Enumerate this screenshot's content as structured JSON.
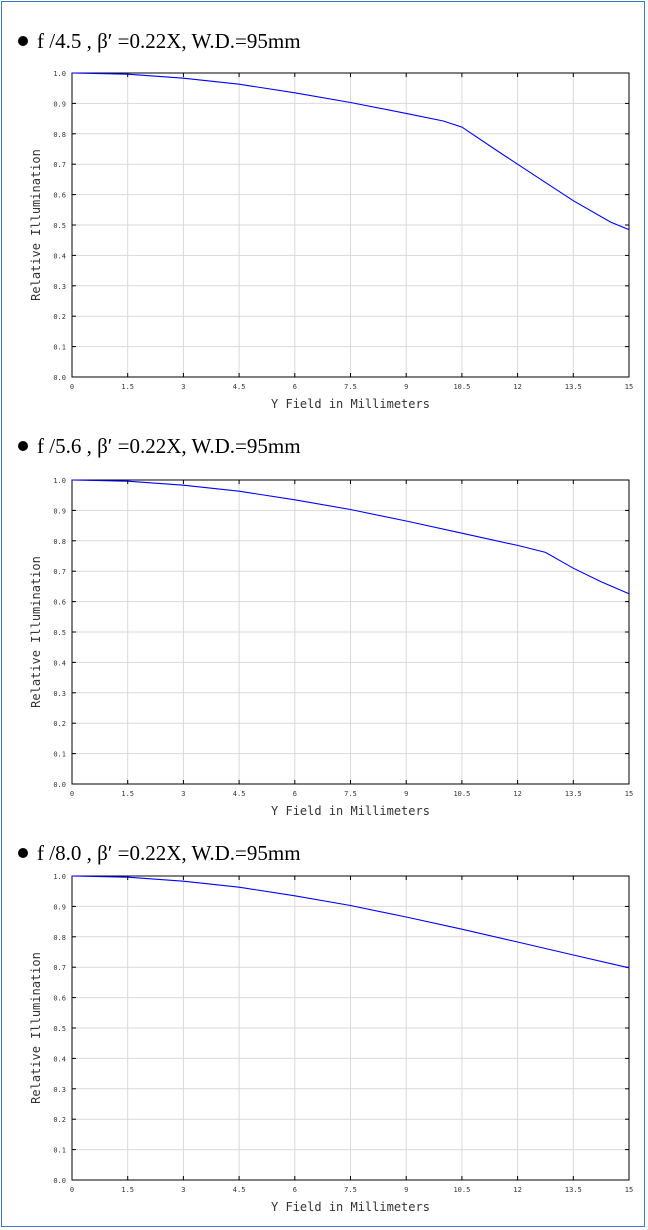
{
  "chart_data": [
    {
      "type": "line",
      "title": "f /4.5 , β′ =0.22X,  W.D.=95mm",
      "xlabel": "Y Field in Millimeters",
      "ylabel": "Relative Illumination",
      "xlim": [
        0,
        15
      ],
      "ylim": [
        0,
        1.0
      ],
      "xticks": [
        "0",
        "1.5",
        "3",
        "4.5",
        "6",
        "7.5",
        "9",
        "10.5",
        "12",
        "13.5",
        "15"
      ],
      "yticks": [
        "0.0",
        "0.1",
        "0.2",
        "0.3",
        "0.4",
        "0.5",
        "0.6",
        "0.7",
        "0.8",
        "0.9",
        "1.0"
      ],
      "grid": true,
      "line_color": "#0000ff",
      "series": [
        {
          "x": [
            0,
            1.5,
            3,
            4.5,
            6,
            7.5,
            9,
            10.0,
            10.5,
            11.5,
            12.5,
            13.5,
            14.5,
            15
          ],
          "y": [
            1.0,
            0.996,
            0.983,
            0.963,
            0.935,
            0.903,
            0.867,
            0.842,
            0.822,
            0.74,
            0.66,
            0.58,
            0.51,
            0.485
          ]
        }
      ]
    },
    {
      "type": "line",
      "title": "f /5.6 , β′ =0.22X,  W.D.=95mm",
      "xlabel": "Y Field in Millimeters",
      "ylabel": "Relative Illumination",
      "xlim": [
        0,
        15
      ],
      "ylim": [
        0,
        1.0
      ],
      "xticks": [
        "0",
        "1.5",
        "3",
        "4.5",
        "6",
        "7.5",
        "9",
        "10.5",
        "12",
        "13.5",
        "15"
      ],
      "yticks": [
        "0.0",
        "0.1",
        "0.2",
        "0.3",
        "0.4",
        "0.5",
        "0.6",
        "0.7",
        "0.8",
        "0.9",
        "1.0"
      ],
      "grid": true,
      "line_color": "#0000ff",
      "series": [
        {
          "x": [
            0,
            1.5,
            3,
            4.5,
            6,
            7.5,
            9,
            10.5,
            12,
            12.75,
            13.5,
            14.25,
            15
          ],
          "y": [
            1.0,
            0.996,
            0.983,
            0.963,
            0.935,
            0.903,
            0.865,
            0.825,
            0.785,
            0.762,
            0.71,
            0.665,
            0.626
          ]
        }
      ]
    },
    {
      "type": "line",
      "title": "f /8.0 , β′ =0.22X,  W.D.=95mm",
      "xlabel": "Y Field in Millimeters",
      "ylabel": "Relative Illumination",
      "xlim": [
        0,
        15
      ],
      "ylim": [
        0,
        1.0
      ],
      "xticks": [
        "0",
        "1.5",
        "3",
        "4.5",
        "6",
        "7.5",
        "9",
        "10.5",
        "12",
        "13.5",
        "15"
      ],
      "yticks": [
        "0.0",
        "0.1",
        "0.2",
        "0.3",
        "0.4",
        "0.5",
        "0.6",
        "0.7",
        "0.8",
        "0.9",
        "1.0"
      ],
      "grid": true,
      "line_color": "#0000ff",
      "series": [
        {
          "x": [
            0,
            1.5,
            3,
            4.5,
            6,
            7.5,
            9,
            10.5,
            12,
            13.5,
            15
          ],
          "y": [
            1.0,
            0.996,
            0.983,
            0.963,
            0.935,
            0.903,
            0.865,
            0.825,
            0.783,
            0.74,
            0.698
          ]
        }
      ]
    }
  ]
}
